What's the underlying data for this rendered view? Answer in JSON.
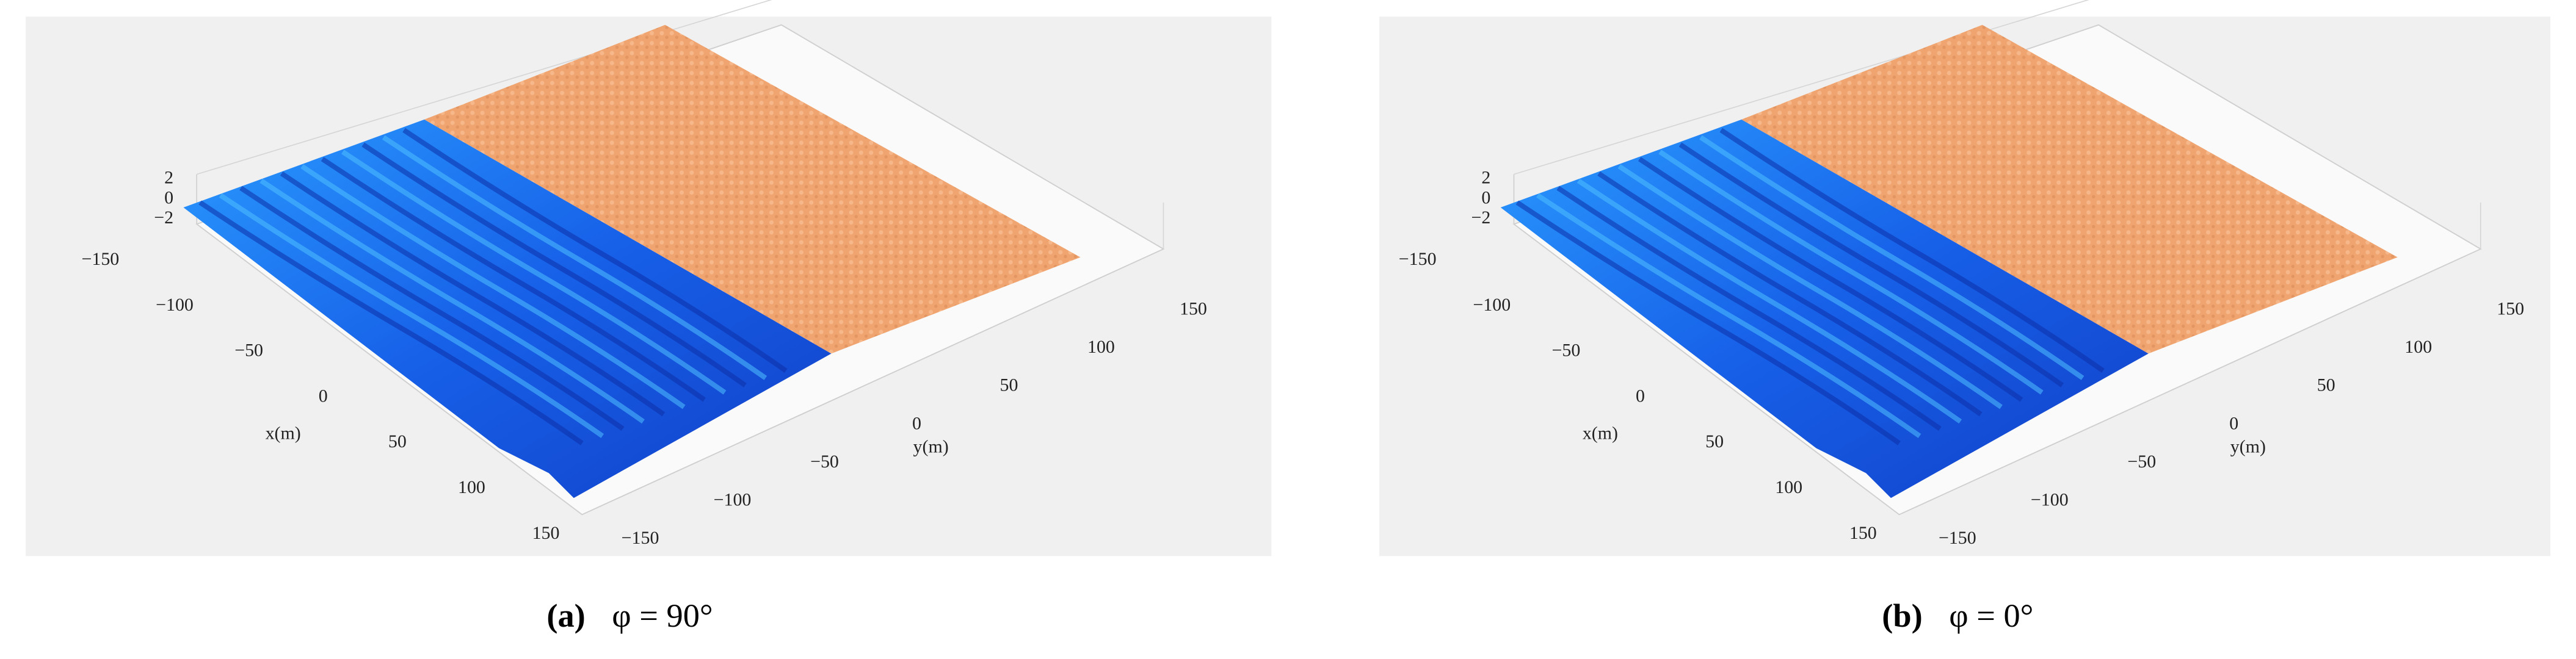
{
  "panels": [
    {
      "label": "(a)",
      "caption": "φ = 90°",
      "z_ticks": [
        "2",
        "0",
        "−2"
      ],
      "x_ticks": [
        "−150",
        "−100",
        "−50",
        "0",
        "50",
        "100",
        "150"
      ],
      "y_ticks": [
        "−150",
        "−100",
        "−50",
        "0",
        "50",
        "100",
        "150"
      ],
      "x_label": "x(m)",
      "y_label": "y(m)"
    },
    {
      "label": "(b)",
      "caption": "φ = 0°",
      "z_ticks": [
        "2",
        "0",
        "−2"
      ],
      "x_ticks": [
        "−150",
        "−100",
        "−50",
        "0",
        "50",
        "100",
        "150"
      ],
      "y_ticks": [
        "−150",
        "−100",
        "−50",
        "0",
        "50",
        "100",
        "150"
      ],
      "x_label": "x(m)",
      "y_label": "y(m)"
    }
  ]
}
